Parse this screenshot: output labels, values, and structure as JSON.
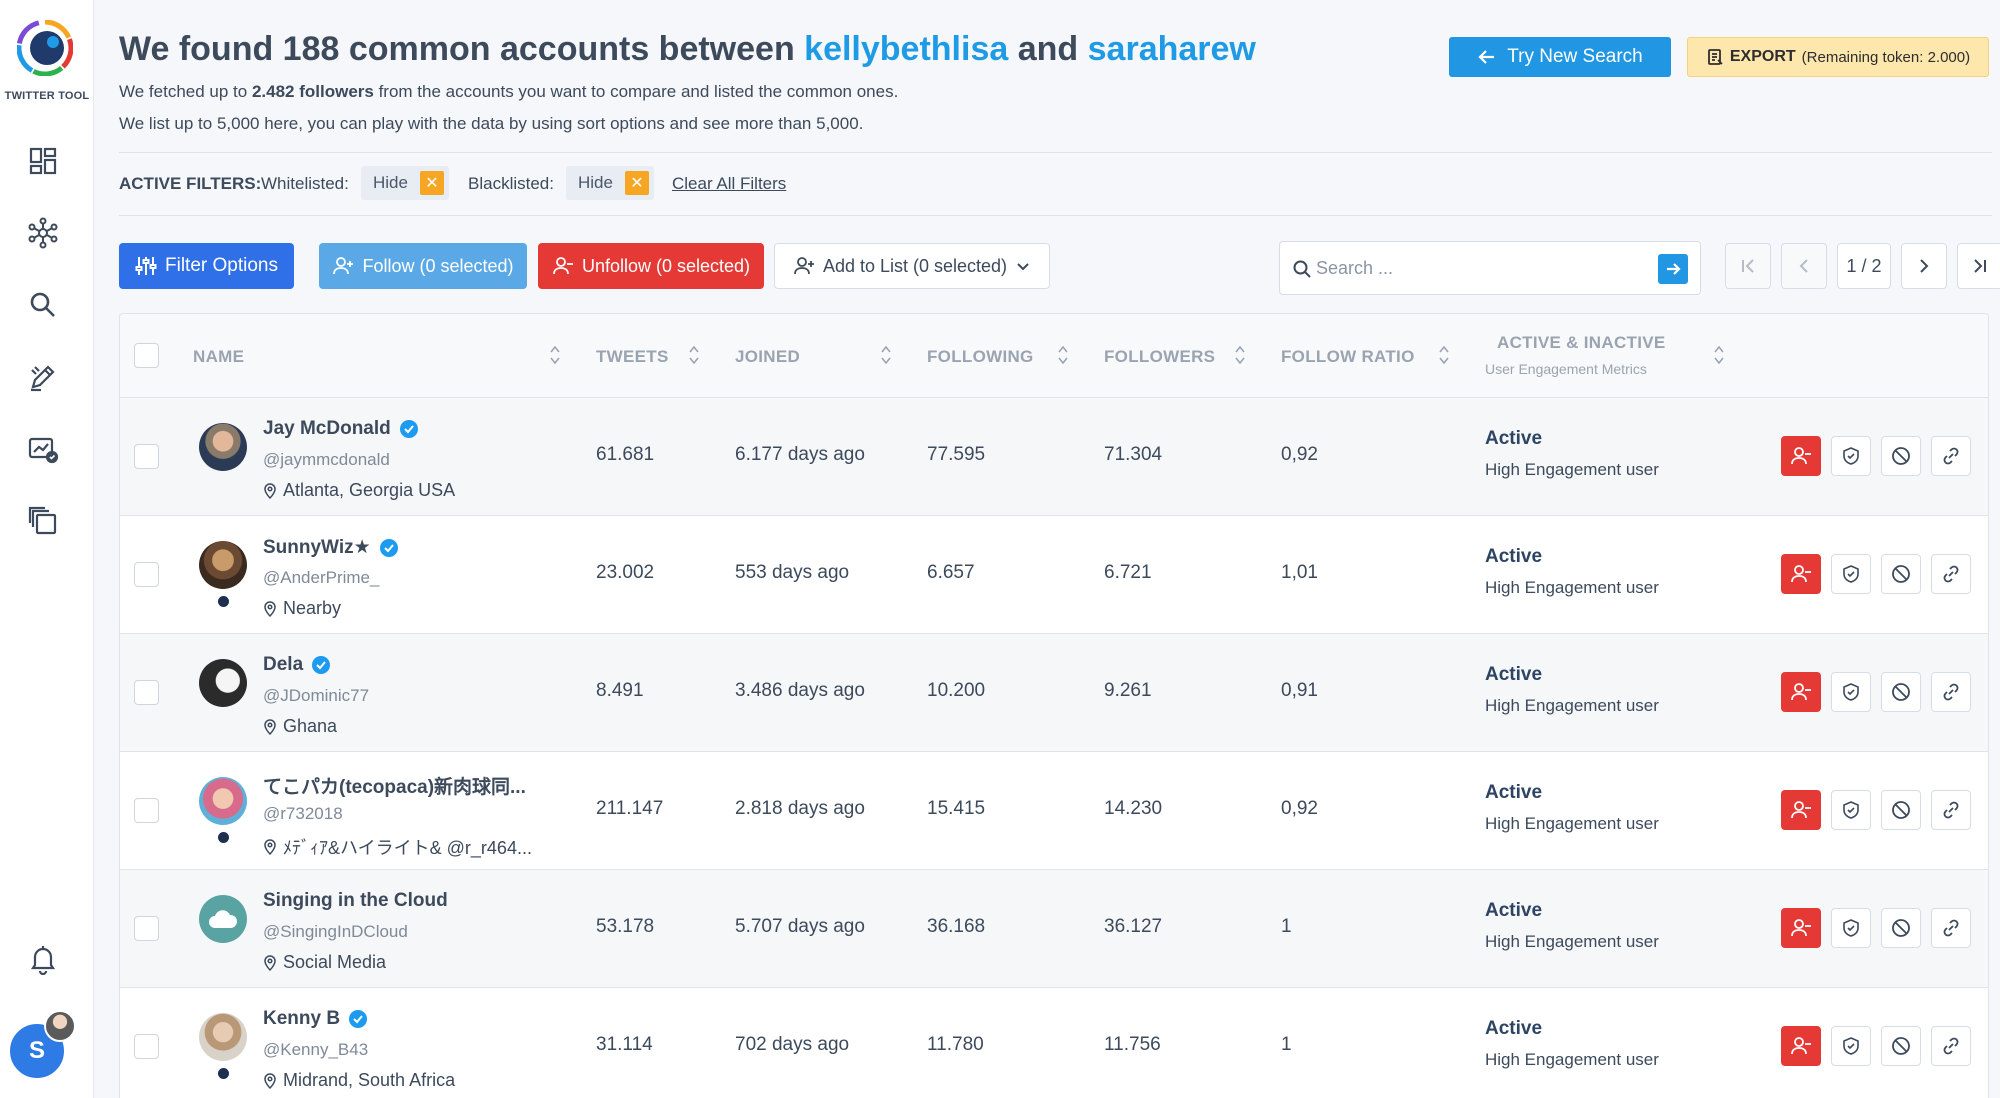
{
  "app": {
    "logo_text": "TWITTER TOOL",
    "avatar_initial": "S"
  },
  "sidebar": {
    "items": [
      {
        "icon": "dashboard-icon"
      },
      {
        "icon": "network-icon"
      },
      {
        "icon": "search-icon"
      },
      {
        "icon": "edit-icon"
      },
      {
        "icon": "analytics-icon"
      },
      {
        "icon": "copy-icon"
      },
      {
        "icon": "bell-icon"
      }
    ]
  },
  "header": {
    "title_prefix": "We found 188 common accounts between",
    "account1": "kellybethlisa",
    "title_mid": "and",
    "account2": "saraharew",
    "sub1_prefix": "We fetched up to",
    "sub1_bold": "2.482 followers",
    "sub1_suffix": "from the accounts you want to compare and listed the common ones.",
    "sub2": "We list up to 5,000 here, you can play with the data by using sort options and see more than 5,000.",
    "try_label": "Try New Search",
    "export_label": "EXPORT",
    "export_remaining": "(Remaining token: 2.000)"
  },
  "filters": {
    "label": "ACTIVE FILTERS:",
    "whitelisted_key": "Whitelisted:",
    "whitelisted_value": "Hide",
    "blacklisted_key": "Blacklisted:",
    "blacklisted_value": "Hide",
    "clear_label": "Clear All Filters"
  },
  "toolbar": {
    "filter_label": "Filter Options",
    "follow_label": "Follow (0 selected)",
    "unfollow_label": "Unfollow (0 selected)",
    "addlist_label": "Add to List (0 selected)",
    "search_placeholder": "Search ...",
    "page_indicator": "1 / 2"
  },
  "table": {
    "headers": {
      "name": "NAME",
      "tweets": "TWEETS",
      "joined": "JOINED",
      "following": "FOLLOWING",
      "followers": "FOLLOWERS",
      "ratio": "FOLLOW RATIO",
      "active": "ACTIVE & INACTIVE",
      "active_sub": "User Engagement Metrics"
    },
    "rows": [
      {
        "name": "Jay McDonald",
        "handle": "@jaymmcdonald",
        "location": "Atlanta, Georgia USA",
        "tweets": "61.681",
        "joined": "6.177 days ago",
        "following": "77.595",
        "followers": "71.304",
        "ratio": "0,92",
        "status": "Active",
        "status_sub": "High Engagement user"
      },
      {
        "name": "SunnyWiz★",
        "handle": "@AnderPrime_",
        "location": "Nearby",
        "tweets": "23.002",
        "joined": "553 days ago",
        "following": "6.657",
        "followers": "6.721",
        "ratio": "1,01",
        "status": "Active",
        "status_sub": "High Engagement user"
      },
      {
        "name": "Dela",
        "handle": "@JDominic77",
        "location": "Ghana",
        "tweets": "8.491",
        "joined": "3.486 days ago",
        "following": "10.200",
        "followers": "9.261",
        "ratio": "0,91",
        "status": "Active",
        "status_sub": "High Engagement user"
      },
      {
        "name": "てこパカ(tecopaca)新肉球同...",
        "handle": "@r732018",
        "location": "ﾒﾃﾞｨｱ&ハイライト& @r_r464...",
        "tweets": "211.147",
        "joined": "2.818 days ago",
        "following": "15.415",
        "followers": "14.230",
        "ratio": "0,92",
        "status": "Active",
        "status_sub": "High Engagement user"
      },
      {
        "name": "Singing in the Cloud",
        "handle": "@SingingInDCloud",
        "location": "Social Media",
        "tweets": "53.178",
        "joined": "5.707 days ago",
        "following": "36.168",
        "followers": "36.127",
        "ratio": "1",
        "status": "Active",
        "status_sub": "High Engagement user"
      },
      {
        "name": "Kenny B",
        "handle": "@Kenny_B43",
        "location": "Midrand, South Africa",
        "tweets": "31.114",
        "joined": "702 days ago",
        "following": "11.780",
        "followers": "11.756",
        "ratio": "1",
        "status": "Active",
        "status_sub": "High Engagement user"
      }
    ]
  },
  "colors": {
    "accent": "#1f9be6",
    "primary": "#2f6fe8",
    "danger": "#e53935",
    "warning": "#f6a623"
  }
}
